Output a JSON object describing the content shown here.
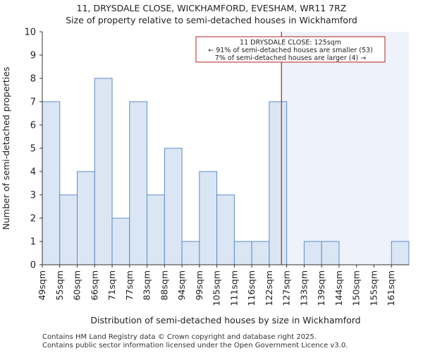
{
  "title_line1": "11, DRYSDALE CLOSE, WICKHAMFORD, EVESHAM, WR11 7RZ",
  "title_line2": "Size of property relative to semi-detached houses in Wickhamford",
  "footer_line1": "Contains HM Land Registry data © Crown copyright and database right 2025.",
  "footer_line2": "Contains public sector information licensed under the Open Government Licence v3.0.",
  "chart_data": {
    "type": "bar",
    "categories": [
      "49sqm",
      "55sqm",
      "60sqm",
      "66sqm",
      "71sqm",
      "77sqm",
      "83sqm",
      "88sqm",
      "94sqm",
      "99sqm",
      "105sqm",
      "111sqm",
      "116sqm",
      "122sqm",
      "127sqm",
      "133sqm",
      "139sqm",
      "144sqm",
      "150sqm",
      "155sqm",
      "161sqm"
    ],
    "values": [
      7,
      3,
      4,
      8,
      2,
      7,
      3,
      5,
      1,
      4,
      3,
      1,
      1,
      7,
      0,
      1,
      1,
      0,
      0,
      0,
      1
    ],
    "xlabel": "Distribution of semi-detached houses by size in Wickhamford",
    "ylabel": "Number of semi-detached properties",
    "ylim": [
      0,
      10
    ],
    "yticks": [
      0,
      1,
      2,
      3,
      4,
      5,
      6,
      7,
      8,
      9,
      10
    ],
    "grid": false,
    "marker": {
      "value_sqm": 125,
      "line_color": "#b22222",
      "annotation": [
        "11 DRYSDALE CLOSE: 125sqm",
        "← 91% of semi-detached houses are smaller (53)",
        "7% of semi-detached houses are larger (4) →"
      ]
    },
    "colors": {
      "bar_fill": "#dbe6f4",
      "bar_stroke": "#5b8cc9",
      "shade": "#eef2fb"
    }
  }
}
